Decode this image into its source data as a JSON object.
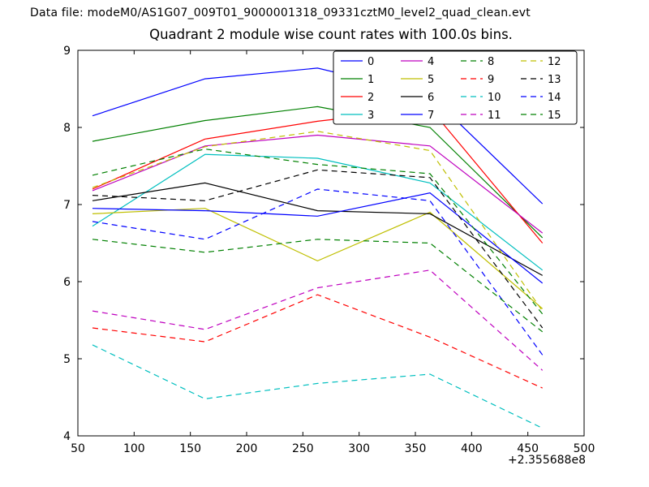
{
  "header": {
    "data_file_label": "Data file: modeM0/AS1G07_009T01_9000001318_09331cztM0_level2_quad_clean.evt"
  },
  "chart_data": {
    "type": "line",
    "title": "Quadrant 2 module wise count rates with 100.0s bins.",
    "xlabel": "",
    "ylabel": "",
    "xlim": [
      50,
      500
    ],
    "ylim": [
      4,
      9
    ],
    "x_ticks": [
      "50",
      "100",
      "150",
      "200",
      "250",
      "300",
      "350",
      "400",
      "450",
      "500"
    ],
    "y_ticks": [
      "4",
      "5",
      "6",
      "7",
      "8",
      "9"
    ],
    "x_offset_text": "+2.355688e8",
    "grid": false,
    "legend": {
      "position": "upper right",
      "columns": 4,
      "rows": 4
    },
    "x": [
      63,
      163,
      263,
      363,
      463
    ],
    "series": [
      {
        "name": "0",
        "color": "#0000ff",
        "style": "solid",
        "values": [
          8.15,
          8.63,
          8.77,
          8.42,
          7.01
        ]
      },
      {
        "name": "1",
        "color": "#008000",
        "style": "solid",
        "values": [
          7.82,
          8.09,
          8.27,
          8.0,
          6.57
        ]
      },
      {
        "name": "2",
        "color": "#ff0000",
        "style": "solid",
        "values": [
          7.2,
          7.85,
          8.08,
          8.25,
          6.5
        ]
      },
      {
        "name": "3",
        "color": "#00bfbf",
        "style": "solid",
        "values": [
          6.72,
          7.65,
          7.6,
          7.28,
          6.15
        ]
      },
      {
        "name": "4",
        "color": "#bf00bf",
        "style": "solid",
        "values": [
          7.18,
          7.76,
          7.9,
          7.76,
          6.63
        ]
      },
      {
        "name": "5",
        "color": "#bfbf00",
        "style": "solid",
        "values": [
          6.88,
          6.95,
          6.27,
          6.9,
          5.65
        ]
      },
      {
        "name": "6",
        "color": "#000000",
        "style": "solid",
        "values": [
          7.05,
          7.28,
          6.92,
          6.88,
          6.08
        ]
      },
      {
        "name": "7",
        "color": "#0000ff",
        "style": "solid",
        "values": [
          6.95,
          6.92,
          6.85,
          7.15,
          5.98
        ]
      },
      {
        "name": "8",
        "color": "#008000",
        "style": "dashed",
        "values": [
          7.38,
          7.72,
          7.52,
          7.4,
          5.58
        ]
      },
      {
        "name": "9",
        "color": "#ff0000",
        "style": "dashed",
        "values": [
          5.4,
          5.22,
          5.83,
          5.28,
          4.62
        ]
      },
      {
        "name": "10",
        "color": "#00bfbf",
        "style": "dashed",
        "values": [
          5.18,
          4.48,
          4.68,
          4.8,
          4.1
        ]
      },
      {
        "name": "11",
        "color": "#bf00bf",
        "style": "dashed",
        "values": [
          5.62,
          5.38,
          5.92,
          6.15,
          4.85
        ]
      },
      {
        "name": "12",
        "color": "#bfbf00",
        "style": "dashed",
        "values": [
          7.22,
          7.75,
          7.95,
          7.7,
          5.62
        ]
      },
      {
        "name": "13",
        "color": "#000000",
        "style": "dashed",
        "values": [
          7.12,
          7.05,
          7.45,
          7.35,
          5.4
        ]
      },
      {
        "name": "14",
        "color": "#0000ff",
        "style": "dashed",
        "values": [
          6.78,
          6.55,
          7.2,
          7.05,
          5.05
        ]
      },
      {
        "name": "15",
        "color": "#008000",
        "style": "dashed",
        "values": [
          6.55,
          6.38,
          6.55,
          6.5,
          5.35
        ]
      }
    ]
  }
}
